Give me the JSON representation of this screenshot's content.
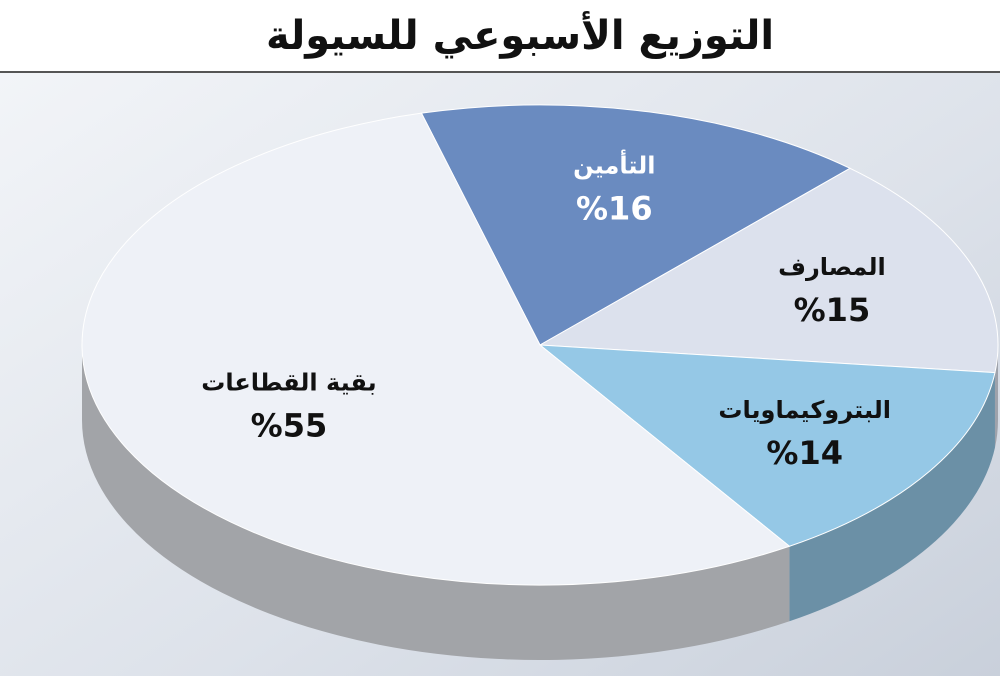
{
  "chart_data": {
    "type": "pie",
    "title": "التوزيع الأسبوعي للسيولة",
    "categories": [
      "التأمين",
      "المصارف",
      "البتروكيماويات",
      "بقية القطاعات"
    ],
    "values": [
      16,
      15,
      14,
      55
    ],
    "value_labels": [
      "%16",
      "%15",
      "%14",
      "%55"
    ],
    "colors": [
      "#6a8bc0",
      "#dce1ed",
      "#95c8e6",
      "#eef1f7"
    ]
  }
}
